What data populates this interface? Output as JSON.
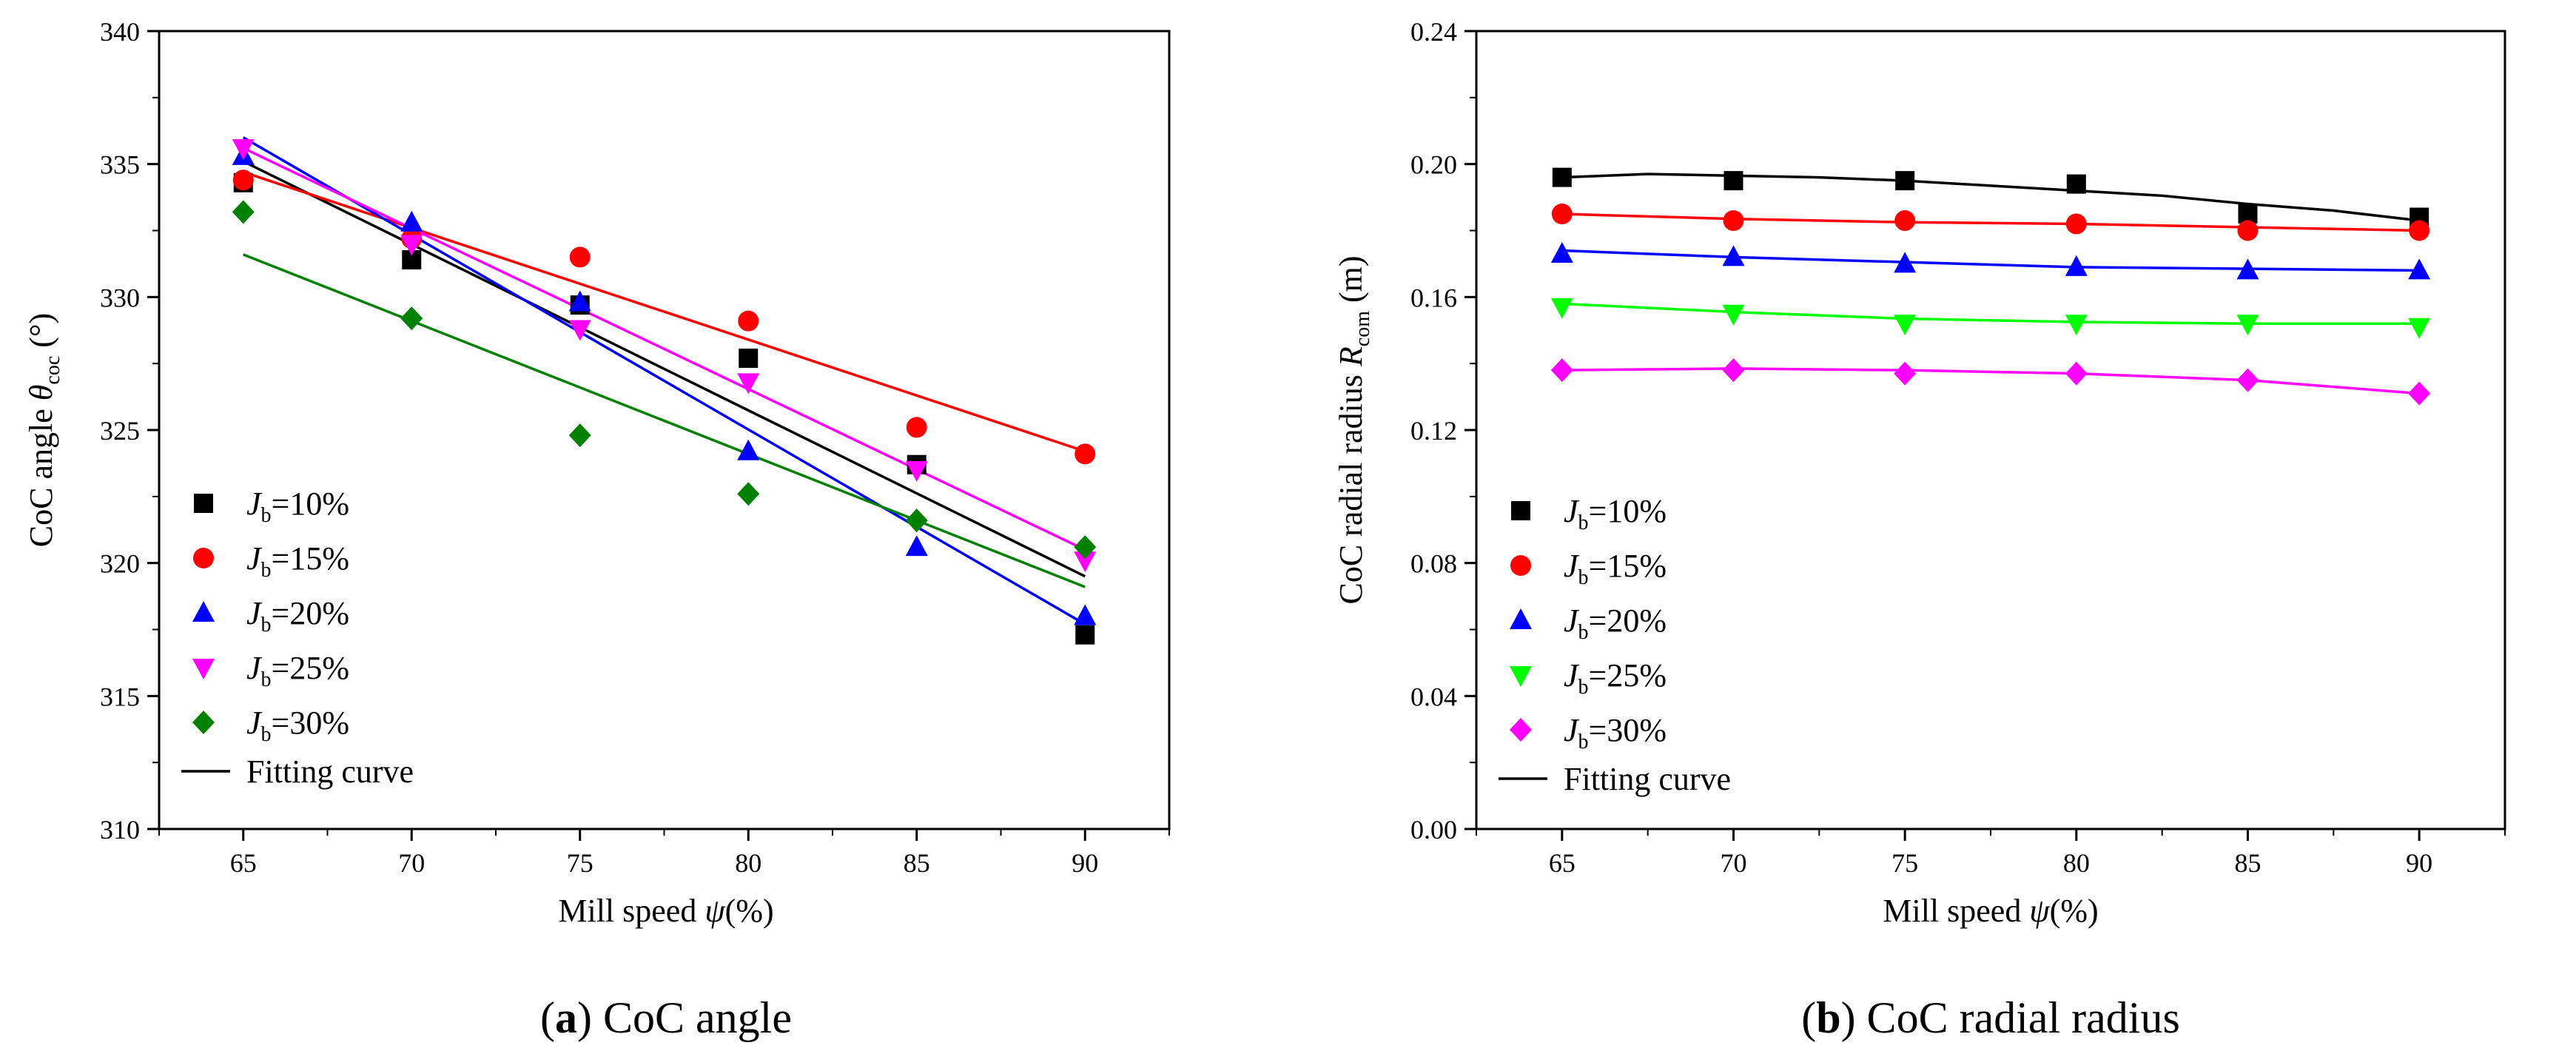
{
  "captions": [
    {
      "letter": "a",
      "text": "CoC angle"
    },
    {
      "letter": "b",
      "text": "CoC radial radius"
    }
  ],
  "chart_data": [
    {
      "type": "scatter",
      "xlabel": {
        "text": "Mill speed",
        "symbol": "ψ",
        "unit": "(%)"
      },
      "ylabel": {
        "text": "CoC angle",
        "symbol": "θ",
        "subscript": "coc",
        "unit": "(°)"
      },
      "xlim": [
        62.5,
        92.5
      ],
      "ylim": [
        310,
        340
      ],
      "xticks": [
        65,
        70,
        75,
        80,
        85,
        90
      ],
      "yticks": [
        310,
        315,
        320,
        325,
        330,
        335,
        340
      ],
      "grid": false,
      "legend_position": "bottom-left",
      "fit_label": "Fitting curve",
      "fit_color": "#000000",
      "series": [
        {
          "name": "J_b=10%",
          "label_var": "J",
          "label_sub": "b",
          "label_val": "=10%",
          "marker": "square",
          "color": "#000000",
          "x": [
            65,
            70,
            75,
            80,
            85,
            90
          ],
          "y": [
            334.3,
            331.4,
            329.7,
            327.7,
            323.7,
            317.3
          ],
          "fit_color": "#000000",
          "fit_y": [
            335.1,
            319.5
          ]
        },
        {
          "name": "J_b=15%",
          "label_var": "J",
          "label_sub": "b",
          "label_val": "=15%",
          "marker": "circle",
          "color": "#ff0000",
          "x": [
            65,
            70,
            75,
            80,
            85,
            90
          ],
          "y": [
            334.4,
            332.2,
            331.5,
            329.1,
            325.1,
            324.1
          ],
          "fit_color": "#ff0000",
          "fit_y": [
            334.7,
            324.2
          ]
        },
        {
          "name": "J_b=20%",
          "label_var": "J",
          "label_sub": "b",
          "label_val": "=20%",
          "marker": "triangle-up",
          "color": "#0000ff",
          "x": [
            65,
            70,
            75,
            80,
            85,
            90
          ],
          "y": [
            335.3,
            332.8,
            329.8,
            324.2,
            320.6,
            318.0
          ],
          "fit_color": "#0000ff",
          "fit_y": [
            336.0,
            317.7
          ]
        },
        {
          "name": "J_b=25%",
          "label_var": "J",
          "label_sub": "b",
          "label_val": "=25%",
          "marker": "triangle-down",
          "color": "#ff00ff",
          "x": [
            65,
            70,
            75,
            80,
            85,
            90
          ],
          "y": [
            335.6,
            332.0,
            328.8,
            326.8,
            323.5,
            320.1
          ],
          "fit_color": "#ff00ff",
          "fit_y": [
            335.6,
            320.5
          ]
        },
        {
          "name": "J_b=30%",
          "label_var": "J",
          "label_sub": "b",
          "label_val": "=30%",
          "marker": "diamond",
          "color": "#008000",
          "x": [
            65,
            70,
            75,
            80,
            85,
            90
          ],
          "y": [
            333.2,
            329.2,
            324.8,
            322.6,
            321.6,
            320.6
          ],
          "fit_color": "#008000",
          "fit_y": [
            331.6,
            319.1
          ]
        }
      ]
    },
    {
      "type": "scatter",
      "xlabel": {
        "text": "Mill speed",
        "symbol": "ψ",
        "unit": "(%)"
      },
      "ylabel": {
        "text": "CoC radial radius",
        "symbol": "R",
        "subscript": "com",
        "unit": "(m)"
      },
      "xlim": [
        62.5,
        92.5
      ],
      "ylim": [
        0.0,
        0.24
      ],
      "xticks": [
        65,
        70,
        75,
        80,
        85,
        90
      ],
      "yticks": [
        0.0,
        0.04,
        0.08,
        0.12,
        0.16,
        0.2,
        0.24
      ],
      "ytick_labels": [
        "0.00",
        "0.04",
        "0.08",
        "0.12",
        "0.16",
        "0.20",
        "0.24"
      ],
      "grid": false,
      "legend_position": "bottom-left",
      "fit_label": "Fitting curve",
      "fit_color": "#000000",
      "series": [
        {
          "name": "J_b=10%",
          "label_var": "J",
          "label_sub": "b",
          "label_val": "=10%",
          "marker": "square",
          "color": "#000000",
          "x": [
            65,
            70,
            75,
            80,
            85,
            90
          ],
          "y": [
            0.196,
            0.195,
            0.195,
            0.194,
            0.185,
            0.184
          ],
          "fit_color": "#000000",
          "fit_x": [
            65,
            67.5,
            70,
            72.5,
            75,
            77.5,
            80,
            82.5,
            85,
            87.5,
            90
          ],
          "fit_y": [
            0.196,
            0.197,
            0.1965,
            0.196,
            0.195,
            0.1935,
            0.192,
            0.1905,
            0.188,
            0.186,
            0.183
          ]
        },
        {
          "name": "J_b=15%",
          "label_var": "J",
          "label_sub": "b",
          "label_val": "=15%",
          "marker": "circle",
          "color": "#ff0000",
          "x": [
            65,
            70,
            75,
            80,
            85,
            90
          ],
          "y": [
            0.185,
            0.183,
            0.183,
            0.182,
            0.18,
            0.18
          ],
          "fit_color": "#ff0000",
          "fit_x": [
            65,
            70,
            75,
            80,
            85,
            90
          ],
          "fit_y": [
            0.185,
            0.1835,
            0.1825,
            0.182,
            0.181,
            0.18
          ]
        },
        {
          "name": "J_b=20%",
          "label_var": "J",
          "label_sub": "b",
          "label_val": "=20%",
          "marker": "triangle-up",
          "color": "#0000ff",
          "x": [
            65,
            70,
            75,
            80,
            85,
            90
          ],
          "y": [
            0.173,
            0.172,
            0.17,
            0.169,
            0.168,
            0.168
          ],
          "fit_color": "#0000ff",
          "fit_x": [
            65,
            70,
            75,
            80,
            85,
            90
          ],
          "fit_y": [
            0.174,
            0.172,
            0.1705,
            0.169,
            0.1685,
            0.168
          ]
        },
        {
          "name": "J_b=25%",
          "label_var": "J",
          "label_sub": "b",
          "label_val": "=25%",
          "marker": "triangle-down",
          "color": "#00ff00",
          "x": [
            65,
            70,
            75,
            80,
            85,
            90
          ],
          "y": [
            0.157,
            0.155,
            0.152,
            0.152,
            0.152,
            0.151
          ],
          "fit_color": "#00ff00",
          "fit_x": [
            65,
            70,
            75,
            80,
            85,
            90
          ],
          "fit_y": [
            0.158,
            0.1555,
            0.1535,
            0.1525,
            0.152,
            0.152
          ]
        },
        {
          "name": "J_b=30%",
          "label_var": "J",
          "label_sub": "b",
          "label_val": "=30%",
          "marker": "diamond",
          "color": "#ff00ff",
          "x": [
            65,
            70,
            75,
            80,
            85,
            90
          ],
          "y": [
            0.138,
            0.138,
            0.137,
            0.137,
            0.135,
            0.131
          ],
          "fit_color": "#ff00ff",
          "fit_x": [
            65,
            70,
            75,
            80,
            85,
            90
          ],
          "fit_y": [
            0.138,
            0.1385,
            0.138,
            0.137,
            0.135,
            0.131
          ]
        }
      ]
    }
  ]
}
